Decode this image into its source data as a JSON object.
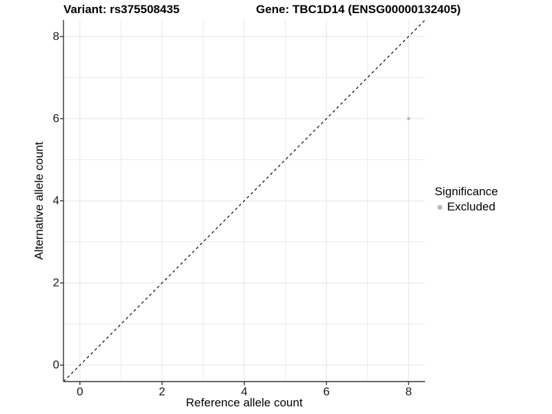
{
  "chart_data": {
    "type": "scatter",
    "title_left": "Variant: rs375508435",
    "title_right": "Gene: TBC1D14 (ENSG00000132405)",
    "xlabel": "Reference allele count",
    "ylabel": "Alternative allele count",
    "xlim": [
      -0.4,
      8.4
    ],
    "ylim": [
      -0.4,
      8.4
    ],
    "xticks": [
      0,
      2,
      4,
      6,
      8
    ],
    "yticks": [
      0,
      2,
      4,
      6,
      8
    ],
    "grid": true,
    "gridline_interval": 1,
    "points": [
      {
        "x": 8,
        "y": 6,
        "series": "Excluded"
      }
    ],
    "point_radius": 2.3,
    "identity_line": {
      "style": "dashed",
      "from": [
        -0.4,
        -0.4
      ],
      "to": [
        8.4,
        8.4
      ],
      "color": "#000000"
    },
    "legend": {
      "title": "Significance",
      "position": "right",
      "items": [
        {
          "label": "Excluded",
          "color": "#b8b8b8",
          "shape": "circle"
        }
      ]
    },
    "colors": {
      "background": "#ffffff",
      "point": "#b8b8b8",
      "grid_major": "#e4e4e4",
      "grid_minor": "#ebebeb",
      "axis_line": "#333333",
      "tick_text": "#1a1a1a",
      "title_text": "#000000"
    }
  }
}
